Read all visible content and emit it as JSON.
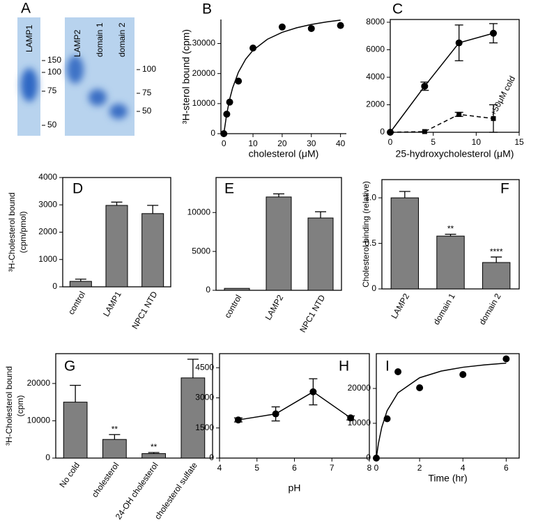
{
  "gel": {
    "panel": "A",
    "lanes": [
      "LAMP1",
      "LAMP2",
      "domain 1",
      "domain 2"
    ],
    "markers_left": [
      150,
      100,
      75,
      50
    ],
    "markers_right": [
      100,
      75,
      50
    ]
  },
  "chart_data": [
    {
      "type": "scatter",
      "panel": "B",
      "frame": "axes",
      "x_label": "cholesterol (μM)",
      "y_label": "³H-sterol bound (cpm)",
      "color": "#000000",
      "x": [
        0,
        1,
        2,
        5,
        10,
        20,
        30,
        40
      ],
      "values": [
        0,
        6500,
        10500,
        17500,
        28500,
        35500,
        35000,
        36000
      ],
      "fit": {
        "x": [
          0,
          1,
          2,
          3,
          5,
          7.5,
          10,
          15,
          20,
          25,
          30,
          35,
          40
        ],
        "values": [
          0,
          6615,
          11467,
          15176,
          20476,
          24808,
          27742,
          31463,
          33725,
          35246,
          36338,
          37160,
          37802
        ]
      },
      "xlim": [
        -1,
        42
      ],
      "xticks": [
        0,
        10,
        20,
        30,
        40
      ],
      "ylim": [
        0,
        38000
      ],
      "yticks": [
        0,
        10000,
        20000,
        30000
      ]
    },
    {
      "type": "scatter",
      "panel": "C",
      "frame": "box",
      "x_label": "25-hydroxycholesterol (μM)",
      "annotation": "+50μM cold",
      "color": "#000000",
      "series": [
        {
          "x": [
            0,
            4,
            8,
            12
          ],
          "values": [
            0,
            3350,
            6500,
            7200
          ],
          "errors": [
            0,
            300,
            1300,
            700
          ],
          "marker": "circle",
          "line": "solid"
        },
        {
          "x": [
            0,
            4,
            8,
            12
          ],
          "values": [
            0,
            50,
            1300,
            1000
          ],
          "errors": [
            0,
            0,
            150,
            1000
          ],
          "marker": "square",
          "line": "dashed"
        }
      ],
      "xlim": [
        0,
        15
      ],
      "xticks": [
        0,
        5,
        10,
        15
      ],
      "ylim": [
        0,
        8200
      ],
      "yticks": [
        0,
        2000,
        4000,
        6000,
        8000
      ]
    },
    {
      "type": "bar",
      "panel": "D",
      "frame": "box",
      "y_label": [
        "³H-Cholesterol bound",
        "(cpm/pmol)"
      ],
      "color": "#808080",
      "categories": [
        "control",
        "LAMP1",
        "NPC1 NTD"
      ],
      "values": [
        200,
        2980,
        2680
      ],
      "errors": [
        80,
        120,
        300
      ],
      "ylim": [
        0,
        4000
      ],
      "yticks": [
        0,
        1000,
        2000,
        3000,
        4000
      ]
    },
    {
      "type": "bar",
      "panel": "E",
      "frame": "box",
      "color": "#808080",
      "categories": [
        "control",
        "LAMP2",
        "NPC1 NTD"
      ],
      "values": [
        250,
        12000,
        9300
      ],
      "errors": [
        0,
        400,
        800
      ],
      "ylim": [
        0,
        14500
      ],
      "yticks": [
        0,
        5000,
        10000
      ]
    },
    {
      "type": "bar",
      "panel": "F",
      "frame": "box",
      "y_label": "Cholesterol binding (relative)",
      "color": "#808080",
      "categories": [
        "LAMP2",
        "domain 1",
        "domain 2"
      ],
      "values": [
        1.0,
        0.58,
        0.29
      ],
      "errors": [
        0.07,
        0.02,
        0.06
      ],
      "annotations": [
        null,
        "**",
        "****"
      ],
      "ylim": [
        0,
        1.2
      ],
      "yticks": [
        0,
        0.5,
        {
          "value": 1,
          "label": "1.0"
        }
      ]
    },
    {
      "type": "bar",
      "panel": "G",
      "frame": "box",
      "y_label": [
        "³H-Cholesterol bound",
        "(cpm)"
      ],
      "color": "#808080",
      "categories": [
        "No cold",
        "cholesterol",
        "24-OH cholesterol",
        "cholesterol sulfate"
      ],
      "values": [
        15000,
        5000,
        1200,
        21500
      ],
      "errors": [
        4500,
        1300,
        300,
        5000
      ],
      "annotations": [
        null,
        "**",
        "**",
        null
      ],
      "ylim": [
        0,
        28000
      ],
      "yticks": [
        0,
        10000,
        20000
      ]
    },
    {
      "type": "scatter",
      "panel": "H",
      "frame": "box",
      "x_label": "pH",
      "color": "#000000",
      "series": [
        {
          "x": [
            4.5,
            5.5,
            6.5,
            7.5
          ],
          "values": [
            1900,
            2200,
            3300,
            2000
          ],
          "errors": [
            100,
            350,
            650,
            100
          ],
          "marker": "circle",
          "line": "solid"
        }
      ],
      "xlim": [
        4,
        8
      ],
      "xticks": [
        4,
        5,
        6,
        7,
        8
      ],
      "ylim": [
        0,
        5200
      ],
      "yticks": [
        0,
        1500,
        3000,
        4500
      ]
    },
    {
      "type": "scatter",
      "panel": "I",
      "frame": "box",
      "x_label": "Time (hr)",
      "color": "#000000",
      "x": [
        0,
        0.5,
        1,
        2,
        4,
        6
      ],
      "values": [
        0,
        11300,
        24800,
        20200,
        24000,
        28500
      ],
      "fit": {
        "x": [
          0,
          0.1,
          0.25,
          0.5,
          1,
          2,
          3,
          4,
          5,
          6
        ],
        "values": [
          0,
          4286,
          8824,
          13636,
          18750,
          23077,
          25000,
          26087,
          26786,
          27273
        ]
      },
      "xlim": [
        0,
        6.6
      ],
      "xticks": [
        0,
        2,
        4,
        6
      ],
      "ylim": [
        0,
        30000
      ],
      "yticks": [
        0,
        10000,
        20000
      ]
    }
  ]
}
